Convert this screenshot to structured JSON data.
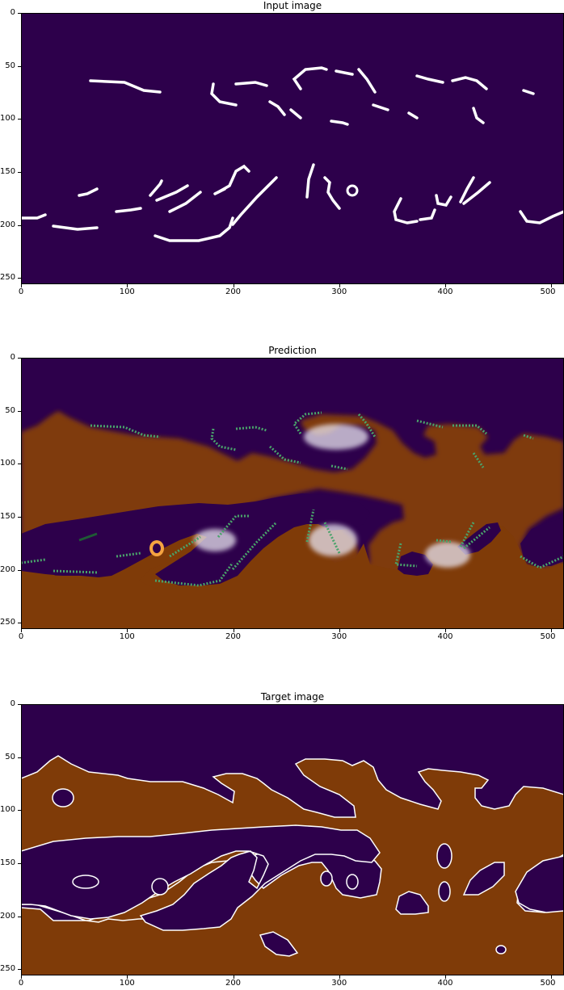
{
  "panels": [
    {
      "title": "Input image",
      "bg": "#2d004b"
    },
    {
      "title": "Prediction",
      "bg": "#2d004b"
    },
    {
      "title": "Target image",
      "bg": "#2d004b"
    }
  ],
  "axes": {
    "x_ticks": [
      "0",
      "100",
      "200",
      "300",
      "400",
      "500"
    ],
    "y_ticks": [
      "0",
      "50",
      "100",
      "150",
      "200",
      "250"
    ],
    "xlim": [
      0,
      512
    ],
    "ylim": [
      0,
      256
    ]
  },
  "colors": {
    "background_class": "#2d004b",
    "foreground_class": "#7f3b08",
    "input_strokes": "#ffffff",
    "seed_markers": "#4aa36b"
  }
}
